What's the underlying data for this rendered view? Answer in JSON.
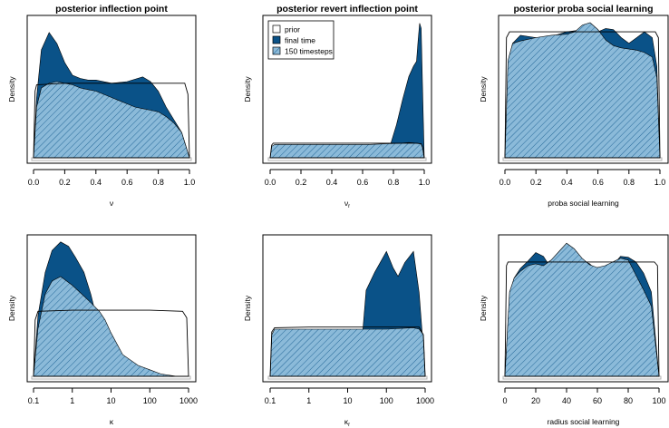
{
  "colors": {
    "final_time_fill": "#0a5288",
    "timesteps_fill": "#8bbad9",
    "hatch_line": "#0a5288",
    "prior_line": "#000000",
    "axis": "#000000",
    "box_gray": "#b0b0b0"
  },
  "legend": {
    "prior": "prior",
    "final_time": "final time",
    "timesteps": "150 timesteps"
  },
  "chart_data": [
    {
      "type": "area",
      "title": "posterior inflection point",
      "xlabel": "ν",
      "ylabel": "Density",
      "xscale": "linear",
      "xlim": [
        0,
        1
      ],
      "ylim": [
        0,
        4.4
      ],
      "xticks": [
        0,
        0.2,
        0.4,
        0.6,
        0.8,
        1
      ],
      "xtick_labels": [
        "0.0",
        "0.2",
        "0.4",
        "0.6",
        "0.8",
        "1.0"
      ],
      "series": [
        {
          "name": "prior",
          "x": [
            0,
            0.01,
            0.02,
            0.2,
            0.5,
            0.8,
            0.97,
            0.99,
            1
          ],
          "y": [
            0,
            2.1,
            2.3,
            2.35,
            2.35,
            2.35,
            2.35,
            2.0,
            0
          ]
        },
        {
          "name": "final time",
          "x": [
            0,
            0.02,
            0.05,
            0.1,
            0.15,
            0.2,
            0.25,
            0.3,
            0.35,
            0.4,
            0.5,
            0.6,
            0.7,
            0.75,
            0.8,
            0.85,
            0.9,
            0.95,
            1
          ],
          "y": [
            0,
            1.9,
            3.4,
            3.95,
            3.6,
            3.0,
            2.6,
            2.5,
            2.45,
            2.45,
            2.35,
            2.4,
            2.55,
            2.4,
            2.1,
            1.6,
            1.2,
            0.8,
            0
          ]
        },
        {
          "name": "150 timesteps",
          "x": [
            0,
            0.02,
            0.05,
            0.1,
            0.15,
            0.2,
            0.25,
            0.3,
            0.35,
            0.4,
            0.5,
            0.6,
            0.65,
            0.7,
            0.75,
            0.8,
            0.85,
            0.9,
            0.95,
            1
          ],
          "y": [
            0,
            1.6,
            2.2,
            2.35,
            2.4,
            2.35,
            2.3,
            2.2,
            2.15,
            2.1,
            1.9,
            1.7,
            1.6,
            1.55,
            1.5,
            1.45,
            1.3,
            1.1,
            0.8,
            0
          ]
        }
      ],
      "legend": false,
      "grid": false
    },
    {
      "type": "area",
      "title": "posterior revert inflection point",
      "xlabel": "ν",
      "xlabel_sub": "r",
      "ylabel": "Density",
      "xscale": "linear",
      "xlim": [
        0,
        1
      ],
      "ylim": [
        0,
        11
      ],
      "xticks": [
        0,
        0.2,
        0.4,
        0.6,
        0.8,
        1
      ],
      "xtick_labels": [
        "0.0",
        "0.2",
        "0.4",
        "0.6",
        "0.8",
        "1.0"
      ],
      "series": [
        {
          "name": "prior",
          "x": [
            0,
            0.01,
            0.02,
            0.2,
            0.5,
            0.8,
            0.95,
            0.98,
            0.99,
            1
          ],
          "y": [
            0,
            1.0,
            1.15,
            1.15,
            1.15,
            1.15,
            1.15,
            1.1,
            0.8,
            0
          ]
        },
        {
          "name": "final time",
          "x": [
            0,
            0.7,
            0.74,
            0.78,
            0.82,
            0.86,
            0.9,
            0.93,
            0.95,
            0.96,
            0.97,
            0.98,
            0.99,
            1
          ],
          "y": [
            0,
            0,
            0.2,
            1.0,
            2.6,
            4.6,
            6.4,
            7.2,
            7.6,
            9.2,
            10.6,
            10.2,
            5.0,
            0
          ]
        },
        {
          "name": "150 timesteps",
          "x": [
            0,
            0.01,
            0.03,
            0.2,
            0.5,
            0.65,
            0.75,
            0.85,
            0.9,
            0.95,
            0.98,
            0.99,
            1
          ],
          "y": [
            0,
            0.9,
            1.05,
            1.05,
            1.05,
            1.05,
            1.1,
            1.15,
            1.2,
            1.15,
            1.1,
            0.8,
            0
          ]
        }
      ],
      "legend": true,
      "legend_position": "top-left",
      "grid": false
    },
    {
      "type": "area",
      "title": "posterior proba social learning",
      "xlabel": "proba social learning",
      "ylabel": "Density",
      "xscale": "linear",
      "xlim": [
        0,
        1
      ],
      "ylim": [
        0,
        1.22
      ],
      "xticks": [
        0,
        0.2,
        0.4,
        0.6,
        0.8,
        1
      ],
      "xtick_labels": [
        "0.0",
        "0.2",
        "0.4",
        "0.6",
        "0.8",
        "1.0"
      ],
      "series": [
        {
          "name": "prior",
          "x": [
            0,
            0.01,
            0.03,
            0.2,
            0.5,
            0.8,
            0.97,
            0.99,
            1
          ],
          "y": [
            0,
            1.05,
            1.1,
            1.1,
            1.1,
            1.1,
            1.1,
            1.05,
            0
          ]
        },
        {
          "name": "final time",
          "x": [
            0,
            0.02,
            0.05,
            0.1,
            0.2,
            0.3,
            0.4,
            0.45,
            0.5,
            0.55,
            0.6,
            0.65,
            0.7,
            0.75,
            0.8,
            0.85,
            0.9,
            0.95,
            0.98,
            1
          ],
          "y": [
            0,
            0.8,
            1.0,
            1.07,
            1.05,
            1.06,
            1.1,
            1.11,
            1.11,
            1.08,
            1.1,
            1.13,
            1.12,
            1.05,
            1.0,
            1.05,
            1.1,
            1.05,
            0.8,
            0
          ]
        },
        {
          "name": "150 timesteps",
          "x": [
            0,
            0.02,
            0.05,
            0.1,
            0.2,
            0.3,
            0.4,
            0.45,
            0.5,
            0.55,
            0.6,
            0.65,
            0.7,
            0.75,
            0.8,
            0.85,
            0.9,
            0.95,
            0.98,
            1
          ],
          "y": [
            0,
            0.85,
            1.0,
            1.02,
            1.05,
            1.07,
            1.08,
            1.1,
            1.16,
            1.18,
            1.12,
            1.03,
            0.98,
            0.96,
            0.95,
            0.94,
            0.92,
            0.88,
            0.7,
            0
          ]
        }
      ],
      "legend": false,
      "grid": false
    },
    {
      "type": "area",
      "title": "",
      "xlabel": "κ",
      "ylabel": "Density",
      "xscale": "log",
      "xlim": [
        0.1,
        1000
      ],
      "ylim": [
        0,
        0.64
      ],
      "xticks": [
        0.1,
        1,
        10,
        100,
        1000
      ],
      "xtick_labels": [
        "0.1",
        "1",
        "10",
        "100",
        "1000"
      ],
      "series": [
        {
          "name": "prior",
          "x": [
            0.1,
            0.11,
            0.13,
            1,
            10,
            100,
            700,
            900,
            1000
          ],
          "y": [
            0,
            0.26,
            0.3,
            0.305,
            0.305,
            0.305,
            0.3,
            0.27,
            0
          ]
        },
        {
          "name": "final time",
          "x": [
            0.1,
            0.13,
            0.2,
            0.3,
            0.5,
            0.8,
            1.2,
            2,
            3,
            5,
            10,
            30,
            100,
            300,
            1000
          ],
          "y": [
            0,
            0.28,
            0.48,
            0.58,
            0.62,
            0.6,
            0.55,
            0.48,
            0.38,
            0.22,
            0.11,
            0.04,
            0.0,
            0.0,
            0.0
          ]
        },
        {
          "name": "150 timesteps",
          "x": [
            0.1,
            0.13,
            0.2,
            0.3,
            0.5,
            1,
            2,
            3,
            5,
            7,
            10,
            20,
            50,
            100,
            200,
            500,
            1000
          ],
          "y": [
            0,
            0.22,
            0.38,
            0.44,
            0.46,
            0.42,
            0.37,
            0.34,
            0.3,
            0.26,
            0.2,
            0.1,
            0.05,
            0.03,
            0.01,
            0.0,
            0.0
          ]
        }
      ],
      "legend": false,
      "grid": false
    },
    {
      "type": "area",
      "title": "",
      "xlabel": "κ",
      "xlabel_sub": "r",
      "ylabel": "Density",
      "xscale": "log",
      "xlim": [
        0.1,
        1000
      ],
      "ylim": [
        0,
        1.0
      ],
      "xticks": [
        0.1,
        1,
        10,
        100,
        1000
      ],
      "xtick_labels": [
        "0.1",
        "1",
        "10",
        "100",
        "1000"
      ],
      "series": [
        {
          "name": "prior",
          "x": [
            0.1,
            0.11,
            0.13,
            1,
            10,
            100,
            700,
            900,
            1000
          ],
          "y": [
            0,
            0.32,
            0.35,
            0.355,
            0.355,
            0.355,
            0.355,
            0.3,
            0
          ]
        },
        {
          "name": "final time",
          "x": [
            0.1,
            15,
            20,
            25,
            30,
            50,
            100,
            150,
            200,
            300,
            500,
            700,
            900,
            1000
          ],
          "y": [
            0,
            0,
            0.1,
            0.35,
            0.62,
            0.75,
            0.9,
            0.78,
            0.72,
            0.82,
            0.9,
            0.6,
            0.2,
            0
          ]
        },
        {
          "name": "150 timesteps",
          "x": [
            0.1,
            0.11,
            0.13,
            1,
            10,
            100,
            500,
            700,
            900,
            1000
          ],
          "y": [
            0,
            0.3,
            0.34,
            0.34,
            0.34,
            0.34,
            0.35,
            0.34,
            0.3,
            0
          ]
        }
      ],
      "legend": false,
      "grid": false
    },
    {
      "type": "area",
      "title": "",
      "xlabel": "radius social learning",
      "ylabel": "Density",
      "xscale": "linear",
      "xlim": [
        0,
        100
      ],
      "ylim": [
        0,
        0.0148
      ],
      "xticks": [
        0,
        20,
        40,
        60,
        80,
        100
      ],
      "xtick_labels": [
        "0",
        "20",
        "40",
        "60",
        "80",
        "100"
      ],
      "series": [
        {
          "name": "prior",
          "x": [
            0,
            1,
            2,
            20,
            50,
            80,
            97,
            99,
            100
          ],
          "y": [
            0,
            0.0118,
            0.0122,
            0.0122,
            0.0122,
            0.0122,
            0.0122,
            0.0118,
            0
          ]
        },
        {
          "name": "final time",
          "x": [
            0,
            3,
            6,
            10,
            15,
            20,
            25,
            30,
            35,
            40,
            45,
            50,
            55,
            60,
            65,
            70,
            75,
            80,
            85,
            90,
            95,
            100
          ],
          "y": [
            0,
            0.0085,
            0.0105,
            0.0115,
            0.0123,
            0.0132,
            0.0128,
            0.0115,
            0.0125,
            0.0136,
            0.013,
            0.0124,
            0.012,
            0.0112,
            0.0108,
            0.0118,
            0.0128,
            0.0127,
            0.0122,
            0.011,
            0.009,
            0
          ]
        },
        {
          "name": "150 timesteps",
          "x": [
            0,
            3,
            6,
            10,
            15,
            20,
            25,
            30,
            35,
            40,
            45,
            50,
            55,
            60,
            65,
            70,
            75,
            80,
            85,
            90,
            95,
            100
          ],
          "y": [
            0,
            0.009,
            0.0105,
            0.0112,
            0.0118,
            0.012,
            0.0118,
            0.0124,
            0.0133,
            0.0142,
            0.0136,
            0.0126,
            0.0119,
            0.0116,
            0.0118,
            0.0122,
            0.0126,
            0.0124,
            0.0108,
            0.0092,
            0.0075,
            0
          ]
        }
      ],
      "legend": false,
      "grid": false
    }
  ]
}
